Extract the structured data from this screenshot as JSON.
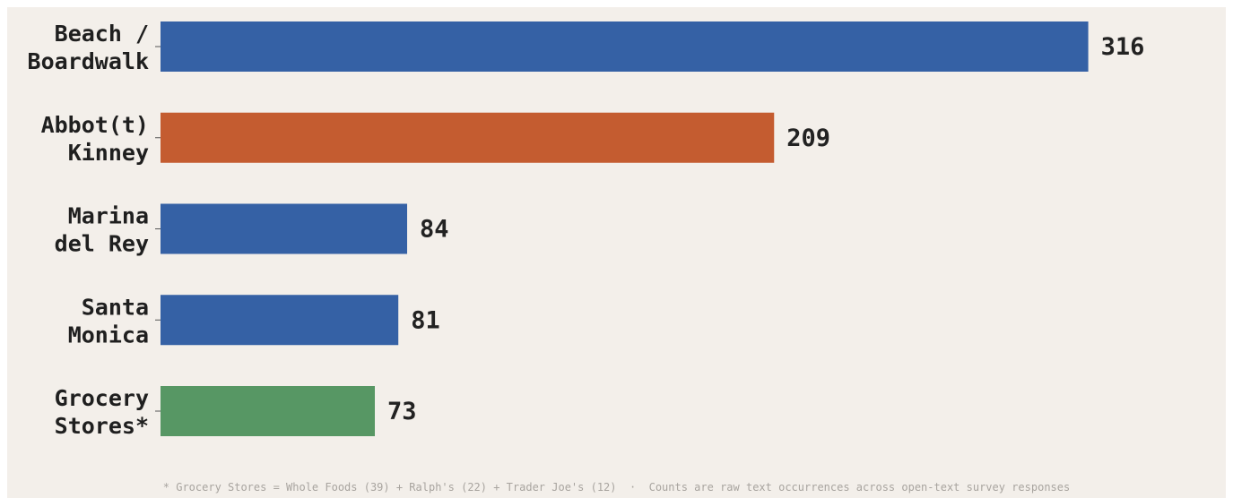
{
  "chart_data": {
    "type": "bar",
    "orientation": "horizontal",
    "categories": [
      "Beach / Boardwalk",
      "Abbot(t) Kinney",
      "Marina del Rey",
      "Santa Monica",
      "Grocery Stores*"
    ],
    "category_lines": [
      [
        "Beach /",
        "Boardwalk"
      ],
      [
        "Abbot(t)",
        "Kinney"
      ],
      [
        "Marina",
        "del Rey"
      ],
      [
        "Santa",
        "Monica"
      ],
      [
        "Grocery",
        "Stores*"
      ]
    ],
    "values": [
      316,
      209,
      84,
      81,
      73
    ],
    "value_labels": [
      "316",
      "209",
      "84",
      "81",
      "73"
    ],
    "colors": [
      "#3561a5",
      "#c45c30",
      "#3561a5",
      "#3561a5",
      "#579764"
    ],
    "xlim": [
      0,
      330
    ],
    "grid": false,
    "legend": "none"
  },
  "footnote": "* Grocery Stores = Whole Foods (39) + Ralph's (22) + Trader Joe's (12)  ·  Counts are raw text occurrences across open-text survey responses",
  "background_color": "#f3efea"
}
